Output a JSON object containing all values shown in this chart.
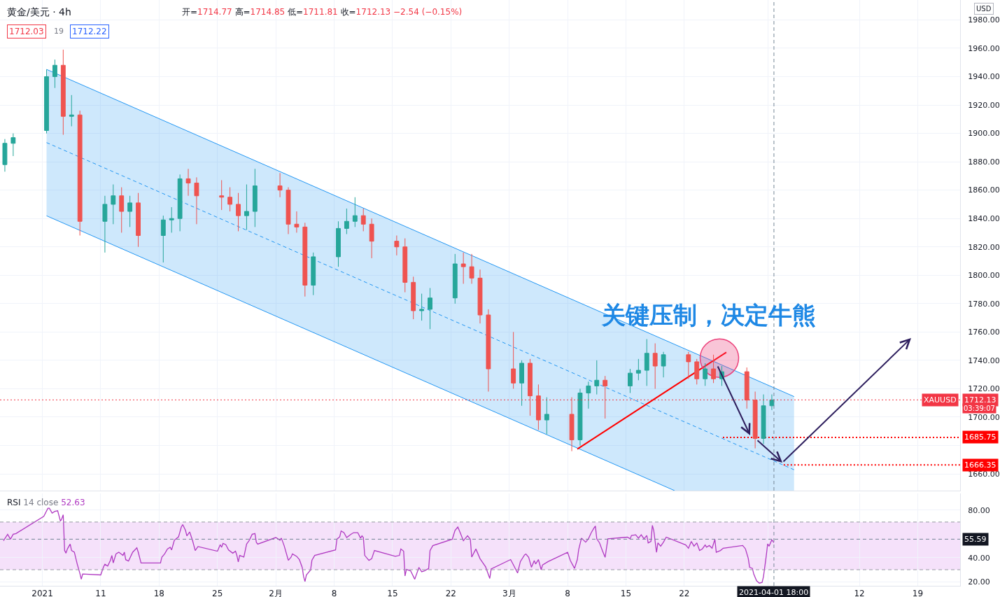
{
  "chart_data": [
    {
      "type": "candlestick",
      "title": "黄金/美元 · 4h",
      "subtitle": "开=1714.77 高=1714.85 低=1711.81 收=1712.13 −2.54 (−0.15%)",
      "annotations": [
        "1712.03",
        "19",
        "1712.22",
        "USD",
        "关键压制，决定牛熊",
        "XAUUSD",
        "03:39:07",
        "1685.75",
        "1666.35"
      ],
      "x": [
        "2020-12-30T12:00",
        "2020-12-31T12:00",
        "2021-01-04T12:00",
        "2021-01-05T12:00",
        "2021-01-06T12:00",
        "2021-01-07T12:00",
        "2021-01-08T12:00",
        "2021-01-11T12:00",
        "2021-01-12T12:00",
        "2021-01-13T12:00",
        "2021-01-14T12:00",
        "2021-01-15T12:00",
        "2021-01-18T12:00",
        "2021-01-19T12:00",
        "2021-01-20T12:00",
        "2021-01-21T12:00",
        "2021-01-22T12:00",
        "2021-01-25T12:00",
        "2021-01-26T12:00",
        "2021-01-27T12:00",
        "2021-01-28T12:00",
        "2021-01-29T12:00",
        "2021-02-01T12:00",
        "2021-02-02T12:00",
        "2021-02-03T12:00",
        "2021-02-04T12:00",
        "2021-02-05T12:00",
        "2021-02-08T12:00",
        "2021-02-09T12:00",
        "2021-02-10T12:00",
        "2021-02-11T12:00",
        "2021-02-12T12:00",
        "2021-02-15T12:00",
        "2021-02-16T12:00",
        "2021-02-17T12:00",
        "2021-02-18T12:00",
        "2021-02-19T12:00",
        "2021-02-22T12:00",
        "2021-02-23T12:00",
        "2021-02-24T12:00",
        "2021-02-25T12:00",
        "2021-02-26T12:00",
        "2021-03-01T12:00",
        "2021-03-02T12:00",
        "2021-03-03T12:00",
        "2021-03-04T12:00",
        "2021-03-05T12:00",
        "2021-03-08T12:00",
        "2021-03-09T12:00",
        "2021-03-10T12:00",
        "2021-03-11T12:00",
        "2021-03-12T12:00",
        "2021-03-15T12:00",
        "2021-03-16T12:00",
        "2021-03-17T12:00",
        "2021-03-18T12:00",
        "2021-03-19T12:00",
        "2021-03-22T12:00",
        "2021-03-23T12:00",
        "2021-03-24T12:00",
        "2021-03-25T12:00",
        "2021-03-26T12:00",
        "2021-03-29T12:00",
        "2021-03-30T12:00",
        "2021-03-31T12:00",
        "2021-04-01T12:00"
      ],
      "ohlc": [
        [
          1878,
          1896,
          1873,
          1893
        ],
        [
          1893,
          1900,
          1884,
          1897
        ],
        [
          1902,
          1945,
          1900,
          1940
        ],
        [
          1940,
          1952,
          1932,
          1948
        ],
        [
          1948,
          1959,
          1899,
          1912
        ],
        [
          1912,
          1927,
          1905,
          1913
        ],
        [
          1913,
          1916,
          1828,
          1838
        ],
        [
          1838,
          1856,
          1816,
          1850
        ],
        [
          1850,
          1864,
          1836,
          1856
        ],
        [
          1856,
          1862,
          1830,
          1845
        ],
        [
          1845,
          1856,
          1834,
          1851
        ],
        [
          1851,
          1858,
          1820,
          1828
        ],
        [
          1828,
          1842,
          1809,
          1839
        ],
        [
          1839,
          1848,
          1830,
          1840
        ],
        [
          1840,
          1871,
          1831,
          1868
        ],
        [
          1868,
          1875,
          1856,
          1865
        ],
        [
          1865,
          1869,
          1836,
          1856
        ],
        [
          1856,
          1867,
          1846,
          1855
        ],
        [
          1855,
          1862,
          1845,
          1850
        ],
        [
          1850,
          1858,
          1831,
          1842
        ],
        [
          1842,
          1864,
          1832,
          1845
        ],
        [
          1845,
          1875,
          1834,
          1863
        ],
        [
          1863,
          1872,
          1855,
          1860
        ],
        [
          1860,
          1862,
          1829,
          1836
        ],
        [
          1836,
          1845,
          1830,
          1834
        ],
        [
          1834,
          1837,
          1785,
          1793
        ],
        [
          1793,
          1816,
          1786,
          1813
        ],
        [
          1813,
          1838,
          1806,
          1833
        ],
        [
          1833,
          1847,
          1829,
          1838
        ],
        [
          1838,
          1855,
          1834,
          1842
        ],
        [
          1842,
          1847,
          1831,
          1836
        ],
        [
          1836,
          1840,
          1812,
          1824
        ],
        [
          1824,
          1828,
          1814,
          1820
        ],
        [
          1820,
          1826,
          1788,
          1795
        ],
        [
          1795,
          1799,
          1769,
          1775
        ],
        [
          1775,
          1787,
          1768,
          1776
        ],
        [
          1776,
          1791,
          1762,
          1784
        ],
        [
          1784,
          1815,
          1780,
          1808
        ],
        [
          1808,
          1816,
          1794,
          1806
        ],
        [
          1806,
          1815,
          1794,
          1798
        ],
        [
          1798,
          1804,
          1766,
          1772
        ],
        [
          1772,
          1776,
          1718,
          1734
        ],
        [
          1734,
          1760,
          1720,
          1724
        ],
        [
          1724,
          1740,
          1708,
          1738
        ],
        [
          1738,
          1741,
          1701,
          1715
        ],
        [
          1715,
          1723,
          1691,
          1698
        ],
        [
          1698,
          1714,
          1688,
          1702
        ],
        [
          1702,
          1714,
          1676,
          1684
        ],
        [
          1684,
          1720,
          1680,
          1717
        ],
        [
          1717,
          1725,
          1706,
          1722
        ],
        [
          1722,
          1740,
          1716,
          1726
        ],
        [
          1726,
          1729,
          1699,
          1722
        ],
        [
          1722,
          1734,
          1717,
          1731
        ],
        [
          1731,
          1741,
          1726,
          1733
        ],
        [
          1733,
          1755,
          1722,
          1745
        ],
        [
          1745,
          1752,
          1720,
          1736
        ],
        [
          1736,
          1746,
          1728,
          1744
        ],
        [
          1744,
          1746,
          1727,
          1739
        ],
        [
          1739,
          1741,
          1723,
          1727
        ],
        [
          1727,
          1738,
          1722,
          1734
        ],
        [
          1734,
          1744,
          1724,
          1727
        ],
        [
          1727,
          1736,
          1722,
          1732
        ],
        [
          1732,
          1735,
          1706,
          1712
        ],
        [
          1712,
          1718,
          1678,
          1685
        ],
        [
          1685,
          1716,
          1681,
          1708
        ],
        [
          1708,
          1716,
          1705,
          1712.13
        ]
      ],
      "colors": [
        "#26a69a",
        "#26a69a",
        "#26a69a",
        "#26a69a",
        "#ef5350",
        "#26a69a",
        "#ef5350",
        "#26a69a",
        "#26a69a",
        "#ef5350",
        "#26a69a",
        "#ef5350",
        "#26a69a",
        "#26a69a",
        "#26a69a",
        "#ef5350",
        "#ef5350",
        "#ef5350",
        "#ef5350",
        "#ef5350",
        "#26a69a",
        "#26a69a",
        "#ef5350",
        "#ef5350",
        "#ef5350",
        "#ef5350",
        "#26a69a",
        "#26a69a",
        "#26a69a",
        "#26a69a",
        "#ef5350",
        "#ef5350",
        "#ef5350",
        "#ef5350",
        "#ef5350",
        "#26a69a",
        "#26a69a",
        "#26a69a",
        "#ef5350",
        "#ef5350",
        "#ef5350",
        "#ef5350",
        "#ef5350",
        "#26a69a",
        "#ef5350",
        "#ef5350",
        "#26a69a",
        "#ef5350",
        "#26a69a",
        "#26a69a",
        "#26a69a",
        "#ef5350",
        "#26a69a",
        "#26a69a",
        "#26a69a",
        "#ef5350",
        "#26a69a",
        "#ef5350",
        "#ef5350",
        "#26a69a",
        "#ef5350",
        "#26a69a",
        "#ef5350",
        "#ef5350",
        "#26a69a",
        "#26a69a"
      ],
      "series": [
        {
          "type": "line",
          "x": [
            "2021-01-04T12:00",
            "2021-03-20T20:00",
            "2021-04-04T04:00"
          ],
          "values": [
            1893.5,
            1699.7,
            1662.9
          ],
          "lower": [
            1841.9,
            1648.2,
            1648.2
          ],
          "upper": [
            1945.1,
            1751.3,
            1714.5
          ],
          "color": "#2196f3",
          "line_style": "dashed"
        },
        {
          "type": "line",
          "x": [
            "2021-01-04T12:00",
            "2021-03-20T20:00",
            "2021-04-04T04:00"
          ],
          "values": [
            1945.1,
            1751.3,
            1714.5
          ],
          "color": "#2196f3"
        },
        {
          "type": "line",
          "x": [
            "2021-01-04T12:00",
            "2021-03-20T20:00"
          ],
          "values": [
            1841.9,
            1648.2
          ],
          "color": "#2196f3"
        },
        {
          "type": "line",
          "x": [
            "2021-03-09T04:00",
            "2021-03-27T01:00"
          ],
          "values": [
            1677.5,
            1745.7
          ],
          "color": "#ff0000"
        },
        {
          "type": "line",
          "x": [
            "2021-03-26T15:00",
            "2021-04-24T02:00"
          ],
          "values": [
            1685.75,
            1685.75
          ],
          "color": "#ff0000",
          "line_style": "dotted"
        },
        {
          "type": "line",
          "x": [
            "2021-04-02T22:00",
            "2021-04-24T02:00"
          ],
          "values": [
            1666.35,
            1666.35
          ],
          "color": "#ff0000",
          "line_style": "dotted"
        },
        {
          "type": "scatter",
          "x": [
            "2021-03-26T05:00"
          ],
          "values": [
            1741.6
          ],
          "color": "#ec407a",
          "marker": "circle"
        }
      ],
      "ref_lines": [
        {
          "axis": "y",
          "value": 1712.13,
          "label": "1712.13",
          "color": "#f23645",
          "line_style": "dotted"
        },
        {
          "axis": "x",
          "value": "2021-04-01T18:00",
          "color": "#758696",
          "line_style": "dashed"
        }
      ],
      "xlim": [
        "2020-12-29T22:00",
        "2021-04-24T02:00"
      ],
      "xticks": [
        {
          "value": "2021-01-04",
          "label": null
        },
        {
          "value": "2021-01-11",
          "label": null
        },
        {
          "value": "2021-01-18",
          "label": null
        },
        {
          "value": "2021-01-25",
          "label": null
        },
        {
          "value": "2021-02-01",
          "label": null
        },
        {
          "value": "2021-02-08",
          "label": null
        },
        {
          "value": "2021-02-15",
          "label": null
        },
        {
          "value": "2021-02-22",
          "label": null
        },
        {
          "value": "2021-03-01",
          "label": null
        },
        {
          "value": "2021-03-08",
          "label": null
        },
        {
          "value": "2021-03-15",
          "label": null
        },
        {
          "value": "2021-03-22",
          "label": null
        },
        {
          "value": "2021-04-01",
          "label": null
        },
        {
          "value": "2021-04-12",
          "label": null
        },
        {
          "value": "2021-04-19",
          "label": null
        }
      ],
      "ylim": [
        1648.2,
        1994
      ],
      "yticks": [
        {
          "value": 1660,
          "label": "1660.00"
        },
        {
          "value": 1680,
          "label": null
        },
        {
          "value": 1700,
          "label": "1700.00"
        },
        {
          "value": 1720,
          "label": "1720.00"
        },
        {
          "value": 1740,
          "label": "1740.00"
        },
        {
          "value": 1760,
          "label": "1760.00"
        },
        {
          "value": 1780,
          "label": "1780.00"
        },
        {
          "value": 1800,
          "label": "1800.00"
        },
        {
          "value": 1820,
          "label": "1820.00"
        },
        {
          "value": 1840,
          "label": "1840.00"
        },
        {
          "value": 1860,
          "label": "1860.00"
        },
        {
          "value": 1880,
          "label": "1880.00"
        },
        {
          "value": 1900,
          "label": "1900.00"
        },
        {
          "value": 1920,
          "label": "1920.00"
        },
        {
          "value": 1940,
          "label": "1940.00"
        },
        {
          "value": 1960,
          "label": "1960.00"
        },
        {
          "value": 1980,
          "label": "1980.00"
        }
      ],
      "grid": true,
      "tick_labels": "y"
    },
    {
      "type": "line",
      "title": "RSI 14 close 52.63",
      "series": [
        {
          "color": "#b03ac2",
          "x": [
            "2020-12-30T08:00",
            "2020-12-30T20:00",
            "2020-12-31T04:00",
            "2020-12-31T12:00",
            "2020-12-31T20:00",
            "2021-01-04T04:00",
            "2021-01-04T16:00",
            "2021-01-04T20:00",
            "2021-01-05T04:00",
            "2021-01-05T12:00",
            "2021-01-05T20:00",
            "2021-01-06T04:00",
            "2021-01-06T08:00",
            "2021-01-06T12:00",
            "2021-01-06T16:00",
            "2021-01-06T20:00",
            "2021-01-07T00:00",
            "2021-01-07T08:00",
            "2021-01-07T12:00",
            "2021-01-07T20:00",
            "2021-01-08T04:00",
            "2021-01-08T12:00",
            "2021-01-08T16:00",
            "2021-01-08T20:00",
            "2021-01-11T00:00",
            "2021-01-11T08:00",
            "2021-01-11T12:00",
            "2021-01-11T20:00",
            "2021-01-12T04:00",
            "2021-01-12T08:00",
            "2021-01-12T12:00",
            "2021-01-12T20:00",
            "2021-01-13T04:00",
            "2021-01-13T16:00",
            "2021-01-13T20:00",
            "2021-01-14T00:00",
            "2021-01-14T08:00",
            "2021-01-14T20:00",
            "2021-01-15T08:00",
            "2021-01-15T12:00",
            "2021-01-15T20:00",
            "2021-01-18T04:00",
            "2021-01-18T08:00",
            "2021-01-18T16:00",
            "2021-01-19T00:00",
            "2021-01-19T08:00",
            "2021-01-19T12:00",
            "2021-01-19T20:00",
            "2021-01-20T08:00",
            "2021-01-20T16:00",
            "2021-01-20T20:00",
            "2021-01-21T04:00",
            "2021-01-21T08:00",
            "2021-01-21T16:00",
            "2021-01-22T00:00",
            "2021-01-22T08:00",
            "2021-01-22T16:00",
            "2021-01-25T00:00",
            "2021-01-25T08:00",
            "2021-01-25T12:00",
            "2021-01-25T16:00",
            "2021-01-26T00:00",
            "2021-01-26T08:00",
            "2021-01-26T20:00",
            "2021-01-27T04:00",
            "2021-01-27T08:00",
            "2021-01-27T12:00",
            "2021-01-27T16:00",
            "2021-01-28T04:00",
            "2021-01-28T12:00",
            "2021-01-28T20:00",
            "2021-01-29T04:00",
            "2021-01-29T12:00",
            "2021-01-29T16:00",
            "2021-01-29T20:00",
            "2021-02-01T00:00",
            "2021-02-01T12:00",
            "2021-02-01T16:00",
            "2021-02-02T00:00",
            "2021-02-02T12:00",
            "2021-02-02T20:00",
            "2021-02-03T00:00",
            "2021-02-03T12:00",
            "2021-02-03T20:00",
            "2021-02-04T04:00",
            "2021-02-04T08:00",
            "2021-02-04T12:00",
            "2021-02-04T16:00",
            "2021-02-05T04:00",
            "2021-02-05T08:00",
            "2021-02-05T16:00",
            "2021-02-08T04:00",
            "2021-02-08T08:00",
            "2021-02-08T16:00",
            "2021-02-08T20:00",
            "2021-02-09T04:00",
            "2021-02-09T12:00",
            "2021-02-10T00:00",
            "2021-02-10T08:00",
            "2021-02-10T20:00",
            "2021-02-11T04:00",
            "2021-02-11T08:00",
            "2021-02-11T12:00",
            "2021-02-11T16:00",
            "2021-02-12T04:00",
            "2021-02-12T12:00",
            "2021-02-12T20:00",
            "2021-02-15T08:00",
            "2021-02-15T20:00",
            "2021-02-16T00:00",
            "2021-02-16T08:00",
            "2021-02-16T12:00",
            "2021-02-16T16:00",
            "2021-02-17T04:00",
            "2021-02-17T16:00",
            "2021-02-18T04:00",
            "2021-02-18T12:00",
            "2021-02-18T20:00",
            "2021-02-19T08:00",
            "2021-02-19T12:00",
            "2021-02-19T20:00",
            "2021-02-22T04:00",
            "2021-02-22T12:00",
            "2021-02-22T20:00",
            "2021-02-23T04:00",
            "2021-02-23T12:00",
            "2021-02-24T00:00",
            "2021-02-24T08:00",
            "2021-02-24T12:00",
            "2021-02-25T00:00",
            "2021-02-25T12:00",
            "2021-02-26T04:00",
            "2021-02-26T16:00",
            "2021-02-26T20:00",
            "2021-03-01T04:00",
            "2021-03-01T12:00",
            "2021-03-02T00:00",
            "2021-03-02T08:00",
            "2021-03-02T20:00",
            "2021-03-03T00:00",
            "2021-03-03T08:00",
            "2021-03-03T16:00",
            "2021-03-04T00:00",
            "2021-03-04T04:00",
            "2021-03-04T12:00",
            "2021-03-04T20:00",
            "2021-03-05T00:00",
            "2021-03-05T16:00",
            "2021-03-08T00:00",
            "2021-03-08T08:00",
            "2021-03-08T20:00",
            "2021-03-09T04:00",
            "2021-03-09T08:00",
            "2021-03-09T16:00",
            "2021-03-10T04:00",
            "2021-03-10T12:00",
            "2021-03-10T20:00",
            "2021-03-11T04:00",
            "2021-03-11T08:00",
            "2021-03-11T12:00",
            "2021-03-11T20:00",
            "2021-03-12T04:00",
            "2021-03-12T12:00",
            "2021-03-12T20:00",
            "2021-03-15T04:00",
            "2021-03-15T12:00",
            "2021-03-15T16:00",
            "2021-03-16T04:00",
            "2021-03-16T12:00",
            "2021-03-16T20:00",
            "2021-03-17T04:00",
            "2021-03-17T12:00",
            "2021-03-17T16:00",
            "2021-03-18T00:00",
            "2021-03-18T04:00",
            "2021-03-18T08:00",
            "2021-03-18T16:00",
            "2021-03-18T20:00",
            "2021-03-19T04:00",
            "2021-03-19T12:00",
            "2021-03-19T20:00",
            "2021-03-22T04:00",
            "2021-03-22T12:00",
            "2021-03-22T20:00",
            "2021-03-23T04:00",
            "2021-03-23T12:00",
            "2021-03-23T20:00",
            "2021-03-24T04:00",
            "2021-03-24T12:00",
            "2021-03-24T16:00",
            "2021-03-25T00:00",
            "2021-03-25T08:00",
            "2021-03-25T16:00",
            "2021-03-25T20:00",
            "2021-03-26T08:00",
            "2021-03-26T16:00",
            "2021-03-29T00:00",
            "2021-03-29T08:00",
            "2021-03-29T16:00",
            "2021-03-29T20:00",
            "2021-03-30T04:00",
            "2021-03-30T08:00",
            "2021-03-30T16:00",
            "2021-03-31T00:00",
            "2021-03-31T08:00",
            "2021-03-31T12:00",
            "2021-03-31T20:00",
            "2021-04-01T00:00",
            "2021-04-01T04:00",
            "2021-04-01T12:00",
            "2021-04-01T18:00"
          ],
          "values": [
            54.3,
            59.7,
            55.6,
            59.7,
            60.3,
            74.8,
            81.6,
            81.6,
            77.5,
            78.9,
            79.4,
            70.7,
            72.9,
            76.1,
            46.1,
            43.9,
            47.4,
            51.5,
            46.1,
            44.7,
            35.1,
            26.9,
            22.0,
            26.4,
            25.6,
            32.4,
            34.6,
            33.0,
            37.9,
            42.0,
            35.7,
            43.3,
            44.7,
            42.0,
            44.7,
            38.4,
            37.3,
            44.7,
            48.3,
            44.7,
            35.7,
            35.7,
            40.6,
            43.3,
            47.4,
            48.8,
            46.6,
            54.8,
            57.6,
            65.8,
            67.9,
            63.0,
            58.4,
            61.7,
            54.8,
            46.1,
            49.4,
            45.5,
            51.0,
            48.8,
            52.1,
            51.0,
            46.6,
            43.9,
            45.5,
            42.0,
            36.5,
            42.0,
            40.6,
            51.5,
            54.8,
            59.7,
            60.3,
            52.9,
            51.5,
            57.0,
            54.8,
            56.5,
            50.2,
            37.9,
            40.6,
            43.3,
            41.2,
            38.4,
            31.9,
            24.2,
            20.1,
            25.6,
            29.7,
            37.9,
            42.0,
            46.6,
            55.6,
            57.6,
            62.5,
            61.1,
            57.0,
            59.7,
            61.1,
            61.1,
            56.5,
            58.4,
            57.0,
            42.0,
            37.9,
            39.2,
            46.1,
            41.2,
            42.0,
            47.4,
            45.5,
            24.8,
            30.2,
            29.1,
            22.0,
            31.9,
            28.3,
            29.1,
            31.0,
            46.1,
            50.2,
            55.6,
            63.0,
            65.8,
            60.3,
            54.3,
            58.4,
            55.6,
            40.6,
            47.4,
            39.2,
            32.4,
            22.7,
            30.6,
            38.5,
            34.1,
            27.2,
            36.8,
            42.4,
            43.2,
            40.4,
            32.0,
            37.6,
            34.8,
            38.5,
            30.0,
            34.0,
            36.8,
            44.6,
            37.6,
            31.1,
            38.5,
            46.9,
            56.5,
            53.1,
            55.9,
            61.0,
            65.0,
            66.6,
            55.9,
            52.5,
            46.1,
            40.4,
            55.9,
            57.3,
            55.9,
            58.7,
            59.3,
            56.5,
            59.3,
            55.9,
            58.7,
            52.5,
            53.7,
            67.2,
            63.0,
            44.6,
            52.5,
            49.7,
            53.1,
            57.3,
            50.8,
            48.0,
            53.7,
            49.7,
            52.5,
            46.1,
            47.5,
            50.8,
            48.9,
            50.3,
            48.0,
            55.4,
            44.6,
            46.1,
            48.0,
            50.3,
            47.5,
            39.6,
            32.0,
            31.1,
            26.3,
            20.7,
            18.7,
            19.3,
            24.4,
            41.8,
            51.7,
            49.7,
            55.1,
            52.63
          ]
        }
      ],
      "bands": [
        {
          "axis": "y",
          "from": 30,
          "to": 70,
          "color": "#f5e1fa"
        }
      ],
      "ref_lines": [
        {
          "axis": "y",
          "value": 70,
          "color": "#9598a1",
          "line_style": "dashed"
        },
        {
          "axis": "y",
          "value": 30,
          "color": "#9598a1",
          "line_style": "dashed"
        },
        {
          "axis": "y",
          "value": 55.59,
          "label": "55.59",
          "color": "#758696",
          "line_style": "dashed"
        },
        {
          "axis": "x",
          "value": "2021-04-01T18:00",
          "label": "2021-04-01 18:00",
          "color": "#758696",
          "line_style": "dashed"
        }
      ],
      "xlim": [
        "2020-12-29T22:00",
        "2021-04-24T02:00"
      ],
      "xticks": [
        {
          "value": "2021-01-04",
          "label": "2021"
        },
        {
          "value": "2021-01-11",
          "label": "11"
        },
        {
          "value": "2021-01-18",
          "label": "18"
        },
        {
          "value": "2021-01-25",
          "label": "25"
        },
        {
          "value": "2021-02-01",
          "label": "2月"
        },
        {
          "value": "2021-02-08",
          "label": "8"
        },
        {
          "value": "2021-02-15",
          "label": "15"
        },
        {
          "value": "2021-02-22",
          "label": "22"
        },
        {
          "value": "2021-03-01",
          "label": "3月"
        },
        {
          "value": "2021-03-08",
          "label": "8"
        },
        {
          "value": "2021-03-15",
          "label": "15"
        },
        {
          "value": "2021-03-22",
          "label": "22"
        },
        {
          "value": "2021-04-01",
          "label": null
        },
        {
          "value": "2021-04-12",
          "label": "12"
        },
        {
          "value": "2021-04-19",
          "label": "19"
        }
      ],
      "ylim": [
        16.5,
        94
      ],
      "yticks": [
        {
          "value": 20,
          "label": "20.00"
        },
        {
          "value": 40,
          "label": "40.00"
        },
        {
          "value": 80,
          "label": "80.00"
        }
      ],
      "grid": true
    }
  ]
}
